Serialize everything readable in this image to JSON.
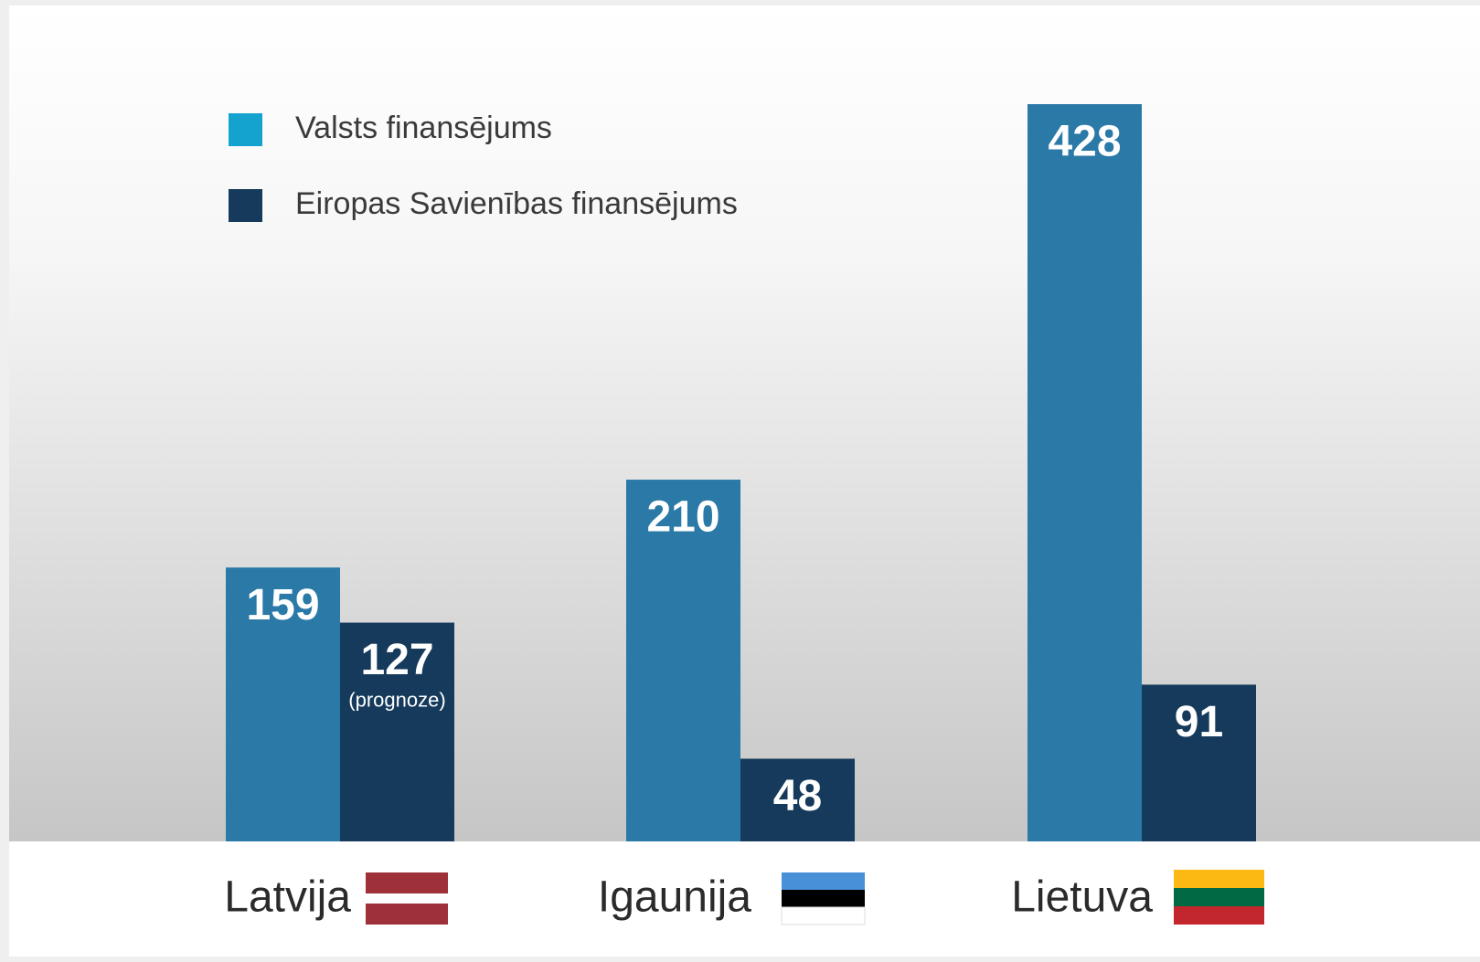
{
  "chart_data": {
    "type": "bar",
    "categories": [
      "Latvija",
      "Igaunija",
      "Lietuva"
    ],
    "series": [
      {
        "name": "Valsts finansējums",
        "color": "#2a79a6",
        "legend_color": "#14a3cf",
        "values": [
          159,
          210,
          428
        ]
      },
      {
        "name": "Eiropas Savienības finansējums",
        "color": "#153a5b",
        "legend_color": "#153a5b",
        "values": [
          127,
          48,
          91
        ],
        "notes": [
          "(prognoze)",
          null,
          null
        ]
      }
    ]
  }
}
